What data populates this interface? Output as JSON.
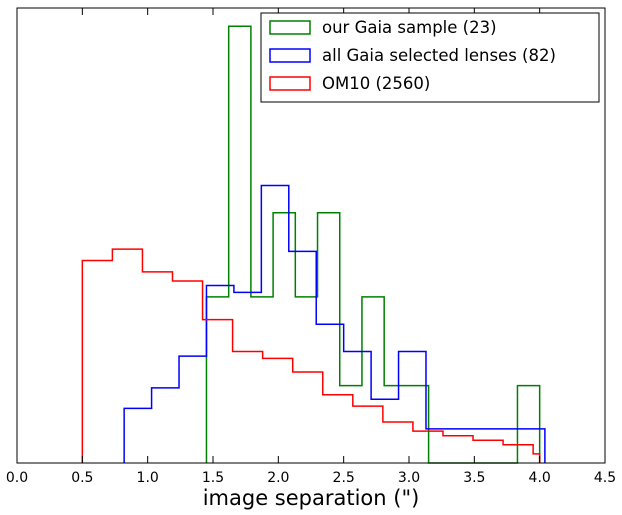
{
  "chart_data": {
    "type": "histogram",
    "title": "",
    "xlabel": "image separation (\")",
    "ylabel": "",
    "xlim": [
      0.0,
      4.5
    ],
    "ylim": [
      0,
      1.0
    ],
    "x_ticks": [
      0.0,
      0.5,
      1.0,
      1.5,
      2.0,
      2.5,
      3.0,
      3.5,
      4.0,
      4.5
    ],
    "x_tick_labels": [
      "0.0",
      "0.5",
      "1.0",
      "1.5",
      "2.0",
      "2.5",
      "3.0",
      "3.5",
      "4.0",
      "4.5"
    ],
    "y_ticks_shown": false,
    "grid": false,
    "legend_position": "top-right",
    "series": [
      {
        "name": "our Gaia sample (23)",
        "color": "#008000",
        "bin_edges": [
          1.45,
          1.62,
          1.79,
          1.96,
          2.13,
          2.3,
          2.47,
          2.64,
          2.81,
          2.98,
          3.15,
          3.32,
          3.49,
          3.66,
          3.83,
          4.0
        ],
        "values": [
          0.365,
          0.96,
          0.365,
          0.55,
          0.365,
          0.55,
          0.17,
          0.365,
          0.17,
          0.17,
          0,
          0,
          0,
          0,
          0.17
        ]
      },
      {
        "name": "all Gaia selected lenses (82)",
        "color": "#0000ff",
        "bin_edges": [
          0.82,
          1.03,
          1.24,
          1.45,
          1.66,
          1.87,
          2.08,
          2.29,
          2.5,
          2.71,
          2.92,
          3.13,
          3.34,
          3.55,
          3.76,
          3.97,
          4.04
        ],
        "values": [
          0.12,
          0.165,
          0.235,
          0.39,
          0.375,
          0.61,
          0.465,
          0.305,
          0.245,
          0.14,
          0.245,
          0.075,
          0.075,
          0.075,
          0.075,
          0.075
        ]
      },
      {
        "name": "OM10 (2560)",
        "color": "#ff0000",
        "bin_edges": [
          0.5,
          0.73,
          0.96,
          1.19,
          1.42,
          1.65,
          1.88,
          2.11,
          2.34,
          2.57,
          2.8,
          3.03,
          3.26,
          3.49,
          3.72,
          3.95,
          4.0
        ],
        "values": [
          0.445,
          0.47,
          0.42,
          0.4,
          0.315,
          0.245,
          0.23,
          0.2,
          0.15,
          0.125,
          0.09,
          0.07,
          0.06,
          0.05,
          0.04,
          0.02
        ]
      }
    ]
  }
}
